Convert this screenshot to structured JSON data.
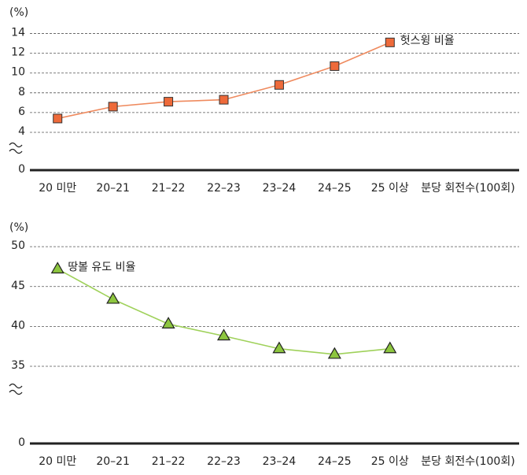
{
  "chart_data": [
    {
      "type": "line",
      "y_label": "(%)",
      "x_label": "분당 회전수(100회)",
      "categories": [
        "20 미만",
        "20–21",
        "21–22",
        "22–23",
        "23–24",
        "24–25",
        "25 이상"
      ],
      "series": [
        {
          "name": "헛스윙 비율",
          "color": "#ee6a3a",
          "line_color": "#ef8a5e",
          "marker": "square",
          "values": [
            5.4,
            6.6,
            7.1,
            7.3,
            8.8,
            10.7,
            13.1
          ]
        }
      ],
      "ylim": [
        0,
        15
      ],
      "yticks": [
        0,
        4,
        6,
        8,
        10,
        12,
        14
      ],
      "axis_break": true,
      "grid": true
    },
    {
      "type": "line",
      "y_label": "(%)",
      "x_label": "분당 회전수(100회)",
      "categories": [
        "20 미만",
        "20–21",
        "21–22",
        "22–23",
        "23–24",
        "24–25",
        "25 이상"
      ],
      "series": [
        {
          "name": "땅볼 유도 비율",
          "color": "#8dc63f",
          "line_color": "#9fd15a",
          "marker": "triangle",
          "values": [
            47.2,
            43.4,
            40.3,
            38.8,
            37.2,
            36.5,
            37.2
          ]
        }
      ],
      "ylim": [
        0,
        51
      ],
      "yticks": [
        0,
        35,
        40,
        45,
        50
      ],
      "axis_break": true,
      "grid": true
    }
  ]
}
